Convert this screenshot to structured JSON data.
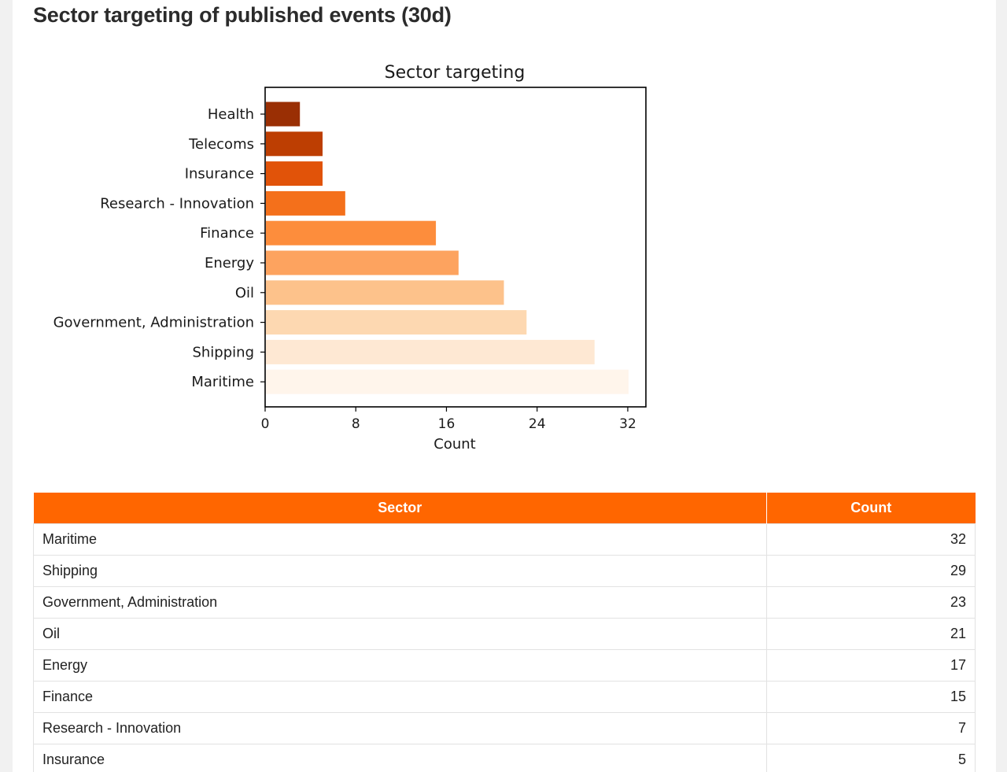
{
  "page_title": "Sector targeting of published events (30d)",
  "colors": {
    "accent": "#ff6600",
    "bar_gradient": [
      "#9a2f04",
      "#bd3e02",
      "#e15309",
      "#f4701b",
      "#fd8d3c",
      "#fda35f",
      "#fdc28b",
      "#fdd8b1",
      "#fee8d3",
      "#fff5eb"
    ]
  },
  "chart_data": {
    "type": "bar",
    "orientation": "horizontal",
    "title": "Sector targeting",
    "xlabel": "Count",
    "ylabel": "",
    "categories": [
      "Health",
      "Telecoms",
      "Insurance",
      "Research - Innovation",
      "Finance",
      "Energy",
      "Oil",
      "Government, Administration",
      "Shipping",
      "Maritime"
    ],
    "values": [
      3,
      5,
      5,
      7,
      15,
      17,
      21,
      23,
      29,
      32
    ],
    "xlim": [
      0,
      33.6
    ],
    "xticks": [
      "0",
      "8",
      "16",
      "24",
      "32"
    ],
    "grid": false
  },
  "table": {
    "headers": [
      "Sector",
      "Count"
    ],
    "rows": [
      [
        "Maritime",
        "32"
      ],
      [
        "Shipping",
        "29"
      ],
      [
        "Government, Administration",
        "23"
      ],
      [
        "Oil",
        "21"
      ],
      [
        "Energy",
        "17"
      ],
      [
        "Finance",
        "15"
      ],
      [
        "Research - Innovation",
        "7"
      ],
      [
        "Insurance",
        "5"
      ]
    ]
  }
}
